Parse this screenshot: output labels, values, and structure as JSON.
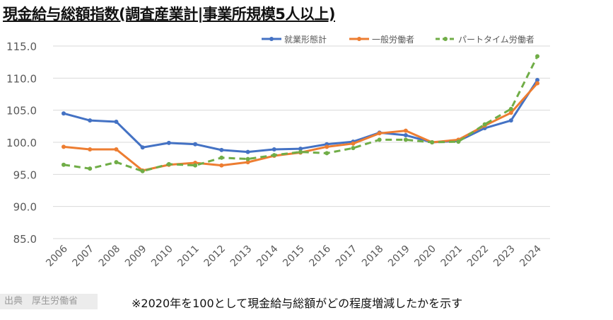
{
  "title": "現金給与総額指数(調査産業計|事業所規模5人以上)",
  "source": "出典　厚生労働省",
  "note": "※2020年を100として現金給与総額がどの程度増減したかを示す",
  "chart_data": {
    "type": "line",
    "title": "現金給与総額指数(調査産業計|事業所規模5人以上)",
    "xlabel": "",
    "ylabel": "",
    "ylim": [
      85,
      115
    ],
    "yticks": [
      "115.0",
      "110.0",
      "105.0",
      "100.0",
      "95.0",
      "90.0",
      "85.0"
    ],
    "ytick_values": [
      115,
      110,
      105,
      100,
      95,
      90,
      85
    ],
    "grid": true,
    "legend_position": "top-right",
    "categories": [
      "2006",
      "2007",
      "2008",
      "2009",
      "2010",
      "2011",
      "2012",
      "2013",
      "2014",
      "2015",
      "2016",
      "2017",
      "2018",
      "2019",
      "2020",
      "2021",
      "2022",
      "2023",
      "2024"
    ],
    "series": [
      {
        "name": "就業形態計",
        "color": "#4472C4",
        "dash": false,
        "values": [
          104.5,
          103.4,
          103.2,
          99.2,
          99.9,
          99.7,
          98.8,
          98.5,
          98.9,
          99.0,
          99.7,
          100.1,
          101.5,
          101.1,
          100.0,
          100.2,
          102.2,
          103.4,
          109.7
        ]
      },
      {
        "name": "一般労働者",
        "color": "#ED7D31",
        "dash": false,
        "values": [
          99.3,
          98.9,
          98.9,
          95.6,
          96.5,
          96.8,
          96.4,
          96.9,
          97.9,
          98.4,
          99.3,
          99.8,
          101.4,
          101.8,
          100.0,
          100.4,
          102.6,
          104.6,
          109.2
        ]
      },
      {
        "name": "パートタイム労働者",
        "color": "#70AD47",
        "dash": true,
        "values": [
          96.5,
          95.9,
          96.9,
          95.5,
          96.6,
          96.4,
          97.6,
          97.4,
          98.0,
          98.5,
          98.3,
          99.1,
          100.4,
          100.4,
          100.0,
          100.1,
          102.8,
          105.2,
          113.4
        ]
      }
    ]
  }
}
